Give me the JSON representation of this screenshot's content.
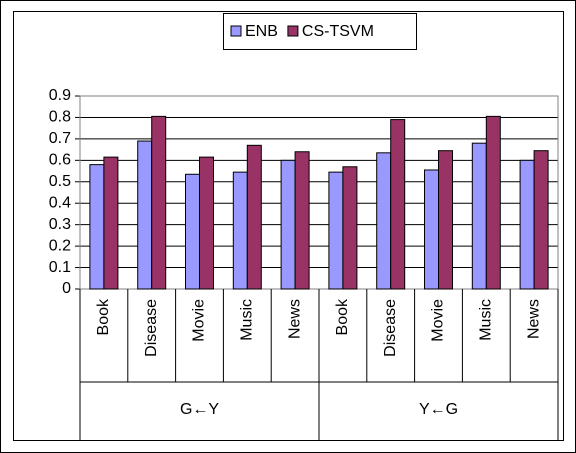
{
  "chart_data": {
    "type": "bar",
    "categories": [
      "Book",
      "Disease",
      "Movie",
      "Music",
      "News",
      "Book",
      "Disease",
      "Movie",
      "Music",
      "News"
    ],
    "groups": [
      "G←Y",
      "Y←G"
    ],
    "series": [
      {
        "name": "ENB",
        "color": "#9999ff",
        "values": [
          0.58,
          0.69,
          0.535,
          0.545,
          0.6,
          0.545,
          0.635,
          0.555,
          0.68,
          0.6
        ]
      },
      {
        "name": "CS-TSVM",
        "color": "#993366",
        "values": [
          0.615,
          0.805,
          0.615,
          0.67,
          0.64,
          0.57,
          0.79,
          0.645,
          0.805,
          0.645
        ]
      }
    ],
    "ylim": [
      0,
      0.9
    ],
    "yticks": [
      0,
      0.1,
      0.2,
      0.3,
      0.4,
      0.5,
      0.6,
      0.7,
      0.8,
      0.9
    ],
    "grid": true,
    "legend": "top"
  }
}
